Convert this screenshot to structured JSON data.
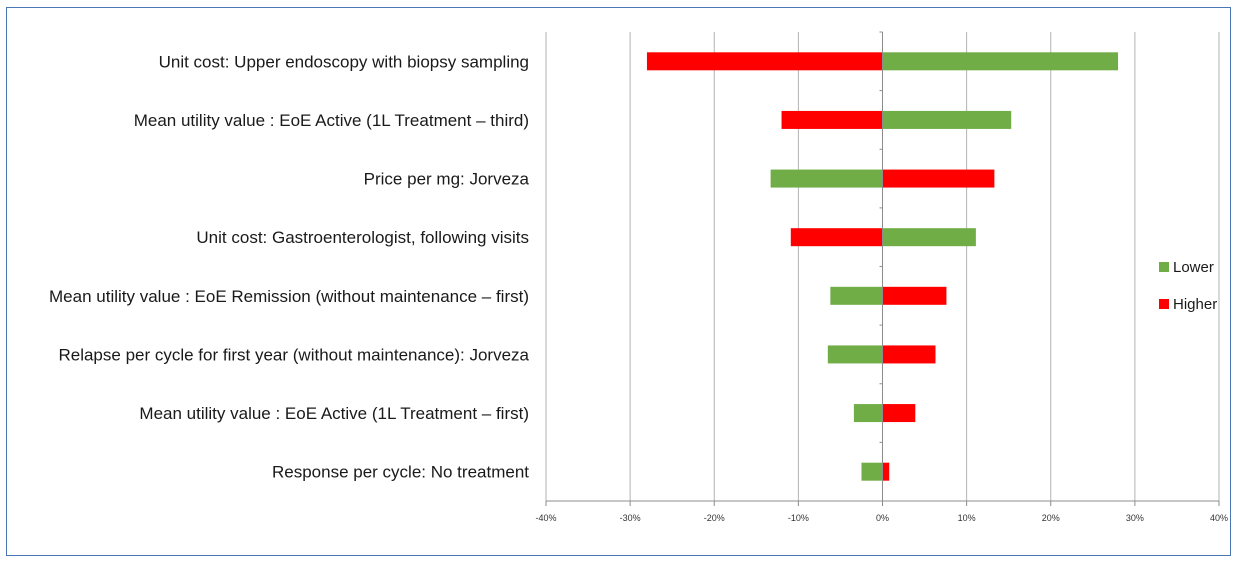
{
  "chart_data": {
    "type": "bar",
    "orientation": "horizontal",
    "stacked": "tornado",
    "categories": [
      "Unit cost: Upper endoscopy with biopsy sampling",
      "Mean utility value :  EoE Active (1L Treatment – third)",
      "Price per mg: Jorveza",
      "Unit cost: Gastroenterologist, following visits",
      "Mean utility value :  EoE Remission (without maintenance – first)",
      "Relapse per cycle for first year (without maintenance): Jorveza",
      "Mean utility value :  EoE Active (1L Treatment – first)",
      "Response per cycle: No treatment"
    ],
    "series": [
      {
        "name": "Lower",
        "color": "#70ad47",
        "values": [
          28,
          15.3,
          -13.3,
          11.1,
          -6.2,
          -6.5,
          -3.4,
          -2.5
        ]
      },
      {
        "name": "Higher",
        "color": "#ff0000",
        "values": [
          -28,
          -12,
          13.3,
          -10.9,
          7.6,
          6.3,
          3.9,
          0.8
        ]
      }
    ],
    "xticks": [
      "-40%",
      "-30%",
      "-20%",
      "-10%",
      "0%",
      "10%",
      "20%",
      "30%",
      "40%"
    ],
    "xlim": [
      -40,
      40
    ],
    "grid": "vertical",
    "legend_position": "right"
  }
}
